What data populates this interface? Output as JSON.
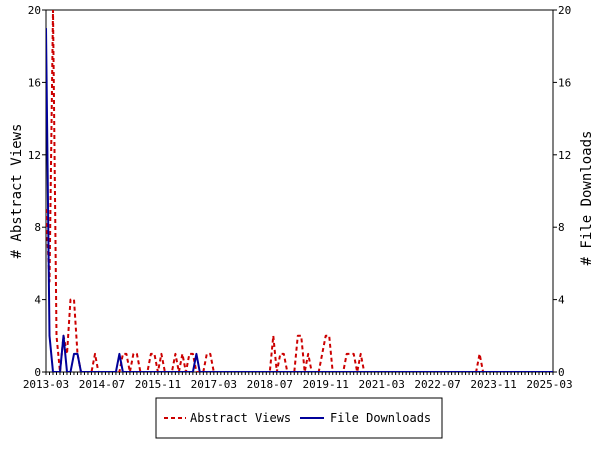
{
  "chart_data": {
    "type": "line",
    "y_left_label": "# Abstract Views",
    "y_right_label": "# File Downloads",
    "ylim": [
      0,
      20
    ],
    "y_ticks": [
      "0",
      "4",
      "8",
      "12",
      "16",
      "20"
    ],
    "x_ticks": [
      "2013-03",
      "2014-07",
      "2015-11",
      "2017-03",
      "2018-07",
      "2019-11",
      "2021-03",
      "2022-07",
      "2023-11",
      "2025-03"
    ],
    "grid": false,
    "legend_position": "bottom",
    "series": [
      {
        "name": "Abstract Views",
        "color": "#cc0000",
        "dashed": true,
        "points": [
          [
            0,
            9
          ],
          [
            1,
            5
          ],
          [
            2,
            20
          ],
          [
            3,
            2
          ],
          [
            4,
            0
          ],
          [
            5,
            2
          ],
          [
            6,
            1
          ],
          [
            7,
            4
          ],
          [
            8,
            4
          ],
          [
            9,
            1
          ],
          [
            10,
            0
          ],
          [
            11,
            0
          ],
          [
            12,
            0
          ],
          [
            13,
            0
          ],
          [
            14,
            1
          ],
          [
            15,
            0
          ],
          [
            16,
            0
          ],
          [
            17,
            0
          ],
          [
            18,
            0
          ],
          [
            19,
            0
          ],
          [
            20,
            0
          ],
          [
            21,
            0
          ],
          [
            22,
            1
          ],
          [
            23,
            1
          ],
          [
            24,
            0
          ],
          [
            25,
            1
          ],
          [
            26,
            1
          ],
          [
            27,
            0
          ],
          [
            28,
            0
          ],
          [
            29,
            0
          ],
          [
            30,
            1
          ],
          [
            31,
            1
          ],
          [
            32,
            0
          ],
          [
            33,
            1
          ],
          [
            34,
            0
          ],
          [
            35,
            0
          ],
          [
            36,
            0
          ],
          [
            37,
            1
          ],
          [
            38,
            0
          ],
          [
            39,
            1
          ],
          [
            40,
            0
          ],
          [
            41,
            1
          ],
          [
            42,
            1
          ],
          [
            43,
            0
          ],
          [
            44,
            0
          ],
          [
            45,
            0
          ],
          [
            46,
            1
          ],
          [
            47,
            1
          ],
          [
            48,
            0
          ],
          [
            49,
            0
          ],
          [
            50,
            0
          ],
          [
            51,
            0
          ],
          [
            52,
            0
          ],
          [
            53,
            0
          ],
          [
            54,
            0
          ],
          [
            55,
            0
          ],
          [
            56,
            0
          ],
          [
            57,
            0
          ],
          [
            58,
            0
          ],
          [
            59,
            0
          ],
          [
            60,
            0
          ],
          [
            61,
            0
          ],
          [
            62,
            0
          ],
          [
            63,
            0
          ],
          [
            64,
            0
          ],
          [
            65,
            2
          ],
          [
            66,
            0
          ],
          [
            67,
            1
          ],
          [
            68,
            1
          ],
          [
            69,
            0
          ],
          [
            70,
            0
          ],
          [
            71,
            0
          ],
          [
            72,
            2
          ],
          [
            73,
            2
          ],
          [
            74,
            0
          ],
          [
            75,
            1
          ],
          [
            76,
            0
          ],
          [
            77,
            0
          ],
          [
            78,
            0
          ],
          [
            79,
            1
          ],
          [
            80,
            2
          ],
          [
            81,
            2
          ],
          [
            82,
            0
          ],
          [
            83,
            0
          ],
          [
            84,
            0
          ],
          [
            85,
            0
          ],
          [
            86,
            1
          ],
          [
            87,
            1
          ],
          [
            88,
            1
          ],
          [
            89,
            0
          ],
          [
            90,
            1
          ],
          [
            91,
            0
          ],
          [
            92,
            0
          ],
          [
            93,
            0
          ],
          [
            94,
            0
          ],
          [
            95,
            0
          ],
          [
            96,
            0
          ],
          [
            97,
            0
          ],
          [
            98,
            0
          ],
          [
            99,
            0
          ],
          [
            100,
            0
          ],
          [
            101,
            0
          ],
          [
            102,
            0
          ],
          [
            103,
            0
          ],
          [
            104,
            0
          ],
          [
            105,
            0
          ],
          [
            106,
            0
          ],
          [
            107,
            0
          ],
          [
            108,
            0
          ],
          [
            109,
            0
          ],
          [
            110,
            0
          ],
          [
            111,
            0
          ],
          [
            112,
            0
          ],
          [
            113,
            0
          ],
          [
            114,
            0
          ],
          [
            115,
            0
          ],
          [
            116,
            0
          ],
          [
            117,
            0
          ],
          [
            118,
            0
          ],
          [
            119,
            0
          ],
          [
            120,
            0
          ],
          [
            121,
            0
          ],
          [
            122,
            0
          ],
          [
            123,
            0
          ],
          [
            124,
            1
          ],
          [
            125,
            0
          ],
          [
            126,
            0
          ],
          [
            127,
            0
          ],
          [
            128,
            0
          ],
          [
            129,
            0
          ],
          [
            130,
            0
          ],
          [
            131,
            0
          ],
          [
            132,
            0
          ],
          [
            133,
            0
          ],
          [
            134,
            0
          ],
          [
            135,
            0
          ],
          [
            136,
            0
          ],
          [
            137,
            0
          ],
          [
            138,
            0
          ],
          [
            139,
            0
          ],
          [
            140,
            0
          ],
          [
            141,
            0
          ],
          [
            142,
            0
          ],
          [
            143,
            0
          ],
          [
            144,
            0
          ],
          [
            145,
            0
          ]
        ]
      },
      {
        "name": "File Downloads",
        "color": "#000099",
        "dashed": false,
        "points": [
          [
            0,
            19
          ],
          [
            1,
            2
          ],
          [
            2,
            0
          ],
          [
            3,
            0
          ],
          [
            4,
            0
          ],
          [
            5,
            2
          ],
          [
            6,
            0
          ],
          [
            7,
            0
          ],
          [
            8,
            1
          ],
          [
            9,
            1
          ],
          [
            10,
            0
          ],
          [
            11,
            0
          ],
          [
            12,
            0
          ],
          [
            13,
            0
          ],
          [
            14,
            0
          ],
          [
            15,
            0
          ],
          [
            16,
            0
          ],
          [
            17,
            0
          ],
          [
            18,
            0
          ],
          [
            19,
            0
          ],
          [
            20,
            0
          ],
          [
            21,
            1
          ],
          [
            22,
            0
          ],
          [
            23,
            0
          ],
          [
            24,
            0
          ],
          [
            25,
            0
          ],
          [
            26,
            0
          ],
          [
            27,
            0
          ],
          [
            28,
            0
          ],
          [
            29,
            0
          ],
          [
            30,
            0
          ],
          [
            31,
            0
          ],
          [
            32,
            0
          ],
          [
            33,
            0
          ],
          [
            34,
            0
          ],
          [
            35,
            0
          ],
          [
            36,
            0
          ],
          [
            37,
            0
          ],
          [
            38,
            0
          ],
          [
            39,
            0
          ],
          [
            40,
            0
          ],
          [
            41,
            0
          ],
          [
            42,
            0
          ],
          [
            43,
            1
          ],
          [
            44,
            0
          ],
          [
            45,
            0
          ],
          [
            46,
            0
          ],
          [
            47,
            0
          ],
          [
            48,
            0
          ],
          [
            49,
            0
          ],
          [
            50,
            0
          ],
          [
            51,
            0
          ],
          [
            52,
            0
          ],
          [
            53,
            0
          ],
          [
            54,
            0
          ],
          [
            55,
            0
          ],
          [
            56,
            0
          ],
          [
            57,
            0
          ],
          [
            58,
            0
          ],
          [
            59,
            0
          ],
          [
            60,
            0
          ],
          [
            61,
            0
          ],
          [
            62,
            0
          ],
          [
            63,
            0
          ],
          [
            64,
            0
          ],
          [
            65,
            0
          ],
          [
            66,
            0
          ],
          [
            67,
            0
          ],
          [
            68,
            0
          ],
          [
            69,
            0
          ],
          [
            70,
            0
          ],
          [
            71,
            0
          ],
          [
            72,
            0
          ],
          [
            73,
            0
          ],
          [
            74,
            0
          ],
          [
            75,
            0
          ],
          [
            76,
            0
          ],
          [
            77,
            0
          ],
          [
            78,
            0
          ],
          [
            79,
            0
          ],
          [
            80,
            0
          ],
          [
            81,
            0
          ],
          [
            82,
            0
          ],
          [
            83,
            0
          ],
          [
            84,
            0
          ],
          [
            85,
            0
          ],
          [
            86,
            0
          ],
          [
            87,
            0
          ],
          [
            88,
            0
          ],
          [
            89,
            0
          ],
          [
            90,
            0
          ],
          [
            91,
            0
          ],
          [
            92,
            0
          ],
          [
            93,
            0
          ],
          [
            94,
            0
          ],
          [
            95,
            0
          ],
          [
            96,
            0
          ],
          [
            97,
            0
          ],
          [
            98,
            0
          ],
          [
            99,
            0
          ],
          [
            100,
            0
          ],
          [
            101,
            0
          ],
          [
            102,
            0
          ],
          [
            103,
            0
          ],
          [
            104,
            0
          ],
          [
            105,
            0
          ],
          [
            106,
            0
          ],
          [
            107,
            0
          ],
          [
            108,
            0
          ],
          [
            109,
            0
          ],
          [
            110,
            0
          ],
          [
            111,
            0
          ],
          [
            112,
            0
          ],
          [
            113,
            0
          ],
          [
            114,
            0
          ],
          [
            115,
            0
          ],
          [
            116,
            0
          ],
          [
            117,
            0
          ],
          [
            118,
            0
          ],
          [
            119,
            0
          ],
          [
            120,
            0
          ],
          [
            121,
            0
          ],
          [
            122,
            0
          ],
          [
            123,
            0
          ],
          [
            124,
            0
          ],
          [
            125,
            0
          ],
          [
            126,
            0
          ],
          [
            127,
            0
          ],
          [
            128,
            0
          ],
          [
            129,
            0
          ],
          [
            130,
            0
          ],
          [
            131,
            0
          ],
          [
            132,
            0
          ],
          [
            133,
            0
          ],
          [
            134,
            0
          ],
          [
            135,
            0
          ],
          [
            136,
            0
          ],
          [
            137,
            0
          ],
          [
            138,
            0
          ],
          [
            139,
            0
          ],
          [
            140,
            0
          ],
          [
            141,
            0
          ],
          [
            142,
            0
          ],
          [
            143,
            0
          ],
          [
            144,
            0
          ],
          [
            145,
            0
          ]
        ]
      }
    ]
  },
  "legend": {
    "items": [
      {
        "label": "Abstract Views",
        "color": "#cc0000",
        "dashed": true
      },
      {
        "label": "File Downloads",
        "color": "#000099",
        "dashed": false
      }
    ]
  }
}
